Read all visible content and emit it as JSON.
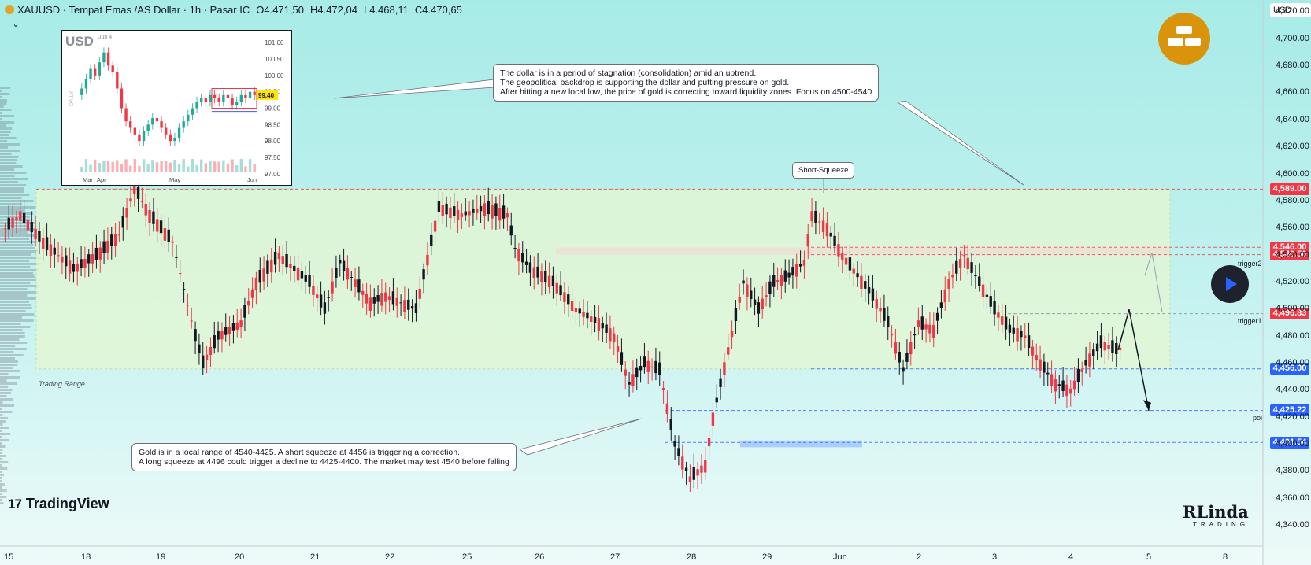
{
  "header": {
    "symbol_line": "XAUUSD · Tempat Emas /AS Dollar · 1h · Pasar IC",
    "open": "O4.471,50",
    "high": "H4.472,04",
    "low": "L4.468,11",
    "close": "C4.470,65"
  },
  "axis_unit": "USD",
  "branding": {
    "platform": "TradingView",
    "watermark": "RLinda",
    "watermark_sub": "TRADING"
  },
  "annotations": {
    "top_note": [
      "The dollar is in a period of stagnation (consolidation) amid an uptrend.",
      "The geopolitical backdrop is supporting the dollar and putting pressure on gold.",
      "After hitting a new local low, the price of gold is correcting toward liquidity zones. Focus on 4500-4540"
    ],
    "bottom_note": [
      "Gold is in a local range of 4540-4425. A short squeeze at 4456 is triggering a correction.",
      "A long squeeze at 4496 could trigger a decline to 4425-4400. The market may test 4540 before falling"
    ],
    "squeeze_tag": "Short-Squeeze",
    "range_label": "Trading Range",
    "trigger1": "trigger1",
    "trigger2": "trigger2",
    "poi": "poi"
  },
  "price_tags": [
    {
      "value": "4,589.00",
      "price": 4589.0,
      "color": "#f23645"
    },
    {
      "value": "4,546.00",
      "price": 4546.0,
      "color": "#f23645"
    },
    {
      "value": "4,540.50",
      "price": 4540.5,
      "color": "#f23645"
    },
    {
      "value": "4,496.83",
      "price": 4496.83,
      "color": "#f23645"
    },
    {
      "value": "4,456.00",
      "price": 4456.0,
      "color": "#2962ff"
    },
    {
      "value": "4,425.22",
      "price": 4425.22,
      "color": "#2962ff"
    },
    {
      "value": "4,401.54",
      "price": 4401.54,
      "color": "#2962ff"
    }
  ],
  "chart_data": {
    "type": "candlestick",
    "symbol": "XAUUSD",
    "interval": "1h",
    "y_axis": {
      "ticks": [
        "4,720.00",
        "4,700.00",
        "4,680.00",
        "4,660.00",
        "4,640.00",
        "4,620.00",
        "4,600.00",
        "4,580.00",
        "4,560.00",
        "4,540.00",
        "4,520.00",
        "4,500.00",
        "4,480.00",
        "4,460.00",
        "4,440.00",
        "4,420.00",
        "4,400.00",
        "4,380.00",
        "4,360.00",
        "4,340.00"
      ],
      "range": [
        4333,
        4729
      ]
    },
    "x_axis": {
      "ticks": [
        "15",
        "18",
        "19",
        "20",
        "21",
        "22",
        "25",
        "26",
        "27",
        "28",
        "29",
        "Jun",
        "2",
        "3",
        "4",
        "5",
        "8"
      ]
    },
    "price_path": [
      [
        0,
        4560
      ],
      [
        2,
        4570
      ],
      [
        5,
        4550
      ],
      [
        9,
        4530
      ],
      [
        12,
        4540
      ],
      [
        15,
        4555
      ],
      [
        17,
        4590
      ],
      [
        19,
        4570
      ],
      [
        22,
        4550
      ],
      [
        25,
        4480
      ],
      [
        26,
        4460
      ],
      [
        28,
        4480
      ],
      [
        31,
        4490
      ],
      [
        33,
        4520
      ],
      [
        36,
        4540
      ],
      [
        38,
        4530
      ],
      [
        40,
        4520
      ],
      [
        42,
        4500
      ],
      [
        44,
        4535
      ],
      [
        46,
        4520
      ],
      [
        48,
        4505
      ],
      [
        50,
        4510
      ],
      [
        52,
        4505
      ],
      [
        54,
        4500
      ],
      [
        57,
        4575
      ],
      [
        60,
        4570
      ],
      [
        63,
        4575
      ],
      [
        66,
        4570
      ],
      [
        67,
        4545
      ],
      [
        69,
        4530
      ],
      [
        72,
        4520
      ],
      [
        75,
        4500
      ],
      [
        78,
        4490
      ],
      [
        80,
        4480
      ],
      [
        82,
        4445
      ],
      [
        84,
        4460
      ],
      [
        86,
        4455
      ],
      [
        88,
        4400
      ],
      [
        90,
        4375
      ],
      [
        92,
        4385
      ],
      [
        93,
        4420
      ],
      [
        95,
        4470
      ],
      [
        97,
        4520
      ],
      [
        99,
        4500
      ],
      [
        101,
        4520
      ],
      [
        103,
        4525
      ],
      [
        105,
        4535
      ],
      [
        106,
        4570
      ],
      [
        108,
        4560
      ],
      [
        110,
        4540
      ],
      [
        112,
        4525
      ],
      [
        114,
        4510
      ],
      [
        116,
        4490
      ],
      [
        118,
        4455
      ],
      [
        120,
        4490
      ],
      [
        122,
        4485
      ],
      [
        124,
        4520
      ],
      [
        126,
        4540
      ],
      [
        128,
        4520
      ],
      [
        130,
        4500
      ],
      [
        132,
        4485
      ],
      [
        134,
        4480
      ],
      [
        136,
        4460
      ],
      [
        138,
        4445
      ],
      [
        140,
        4440
      ],
      [
        142,
        4460
      ],
      [
        144,
        4475
      ],
      [
        146,
        4470
      ],
      [
        147,
        4472
      ]
    ],
    "volume_profile_left": true,
    "trading_range": {
      "top": 4589,
      "bottom": 4456
    },
    "levels": [
      {
        "price": 4589.0,
        "style": "dashed-red"
      },
      {
        "price": 4546.0,
        "style": "dashed-red",
        "label": ""
      },
      {
        "price": 4540.5,
        "style": "dashed-red",
        "label": "trigger2"
      },
      {
        "price": 4496.83,
        "style": "dotted-gray",
        "label": "trigger1"
      },
      {
        "price": 4456.0,
        "style": "dashed-blue"
      },
      {
        "price": 4425.22,
        "style": "dashed-blue",
        "label": "poi"
      },
      {
        "price": 4401.54,
        "style": "dashed-blue"
      }
    ],
    "projection": [
      [
        0,
        4470
      ],
      [
        1,
        4500
      ],
      [
        2,
        4425
      ]
    ],
    "grid": false
  },
  "inset_chart": {
    "title": "USD",
    "subtitle": "Jun 4",
    "side_label": "DAILY",
    "y_ticks": [
      "101.00",
      "100.50",
      "100.00",
      "99.50",
      "99.00",
      "98.50",
      "98.00",
      "97.50",
      "97.00"
    ],
    "x_ticks": [
      "Mar",
      "Apr",
      "May",
      "Jun"
    ],
    "last_price": "99.40",
    "last_price_value": 99.4,
    "y_range": [
      96.9,
      101.1
    ],
    "closes": [
      99.6,
      99.9,
      100.2,
      100.0,
      100.4,
      100.7,
      100.3,
      100.1,
      99.6,
      99.0,
      98.6,
      98.4,
      98.2,
      98.0,
      98.3,
      98.5,
      98.7,
      98.6,
      98.4,
      98.2,
      98.0,
      98.1,
      98.4,
      98.6,
      98.8,
      99.0,
      99.2,
      99.3,
      99.2,
      99.4,
      99.3,
      99.2,
      99.4,
      99.3,
      99.1,
      99.2,
      99.4,
      99.3,
      99.5,
      99.4
    ]
  }
}
